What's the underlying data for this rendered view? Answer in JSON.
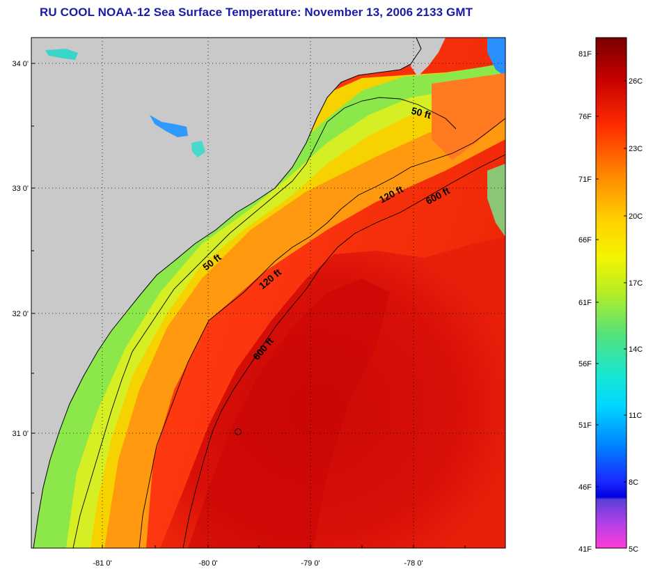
{
  "title": "RU COOL  NOAA-12  Sea Surface Temperature:  November 13, 2006 2133 GMT",
  "map": {
    "latitude_labels": [
      "34 0'",
      "33 0'",
      "32 0'",
      "31 0'"
    ],
    "longitude_labels": [
      "-81 0'",
      "-80 0'",
      "-79 0'",
      "-78 0'"
    ],
    "contour_labels": [
      {
        "id": "50ft-north",
        "text": "50 ft"
      },
      {
        "id": "120ft-north",
        "text": "120 ft"
      },
      {
        "id": "600ft-north",
        "text": "600 ft"
      },
      {
        "id": "50ft-mid",
        "text": "50 ft"
      },
      {
        "id": "120ft-mid",
        "text": "120 ft"
      },
      {
        "id": "600ft-south",
        "text": "600 ft"
      }
    ],
    "colors": {
      "land": "#c9c9c9",
      "grid": "#000000",
      "contour": "#000000"
    }
  },
  "colorbar": {
    "fahrenheit_labels": [
      "81F",
      "76F",
      "71F",
      "66F",
      "61F",
      "56F",
      "51F",
      "46F",
      "41F"
    ],
    "celsius_labels": [
      "26C",
      "23C",
      "20C",
      "17C",
      "14C",
      "11C",
      "8C",
      "5C"
    ]
  }
}
